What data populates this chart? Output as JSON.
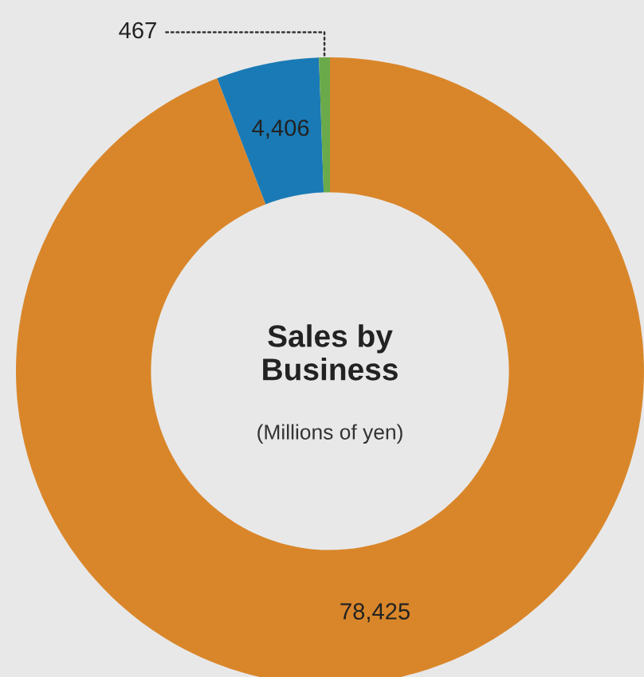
{
  "chart_data": {
    "type": "donut",
    "title": "Sales by Business",
    "subtitle": "(Millions of yen)",
    "categories": [
      null,
      null,
      null
    ],
    "values": [
      78425,
      4406,
      467
    ],
    "colors": [
      "#d9862a",
      "#1a7ab5",
      "#6aaa4a"
    ],
    "value_labels": [
      "78,425",
      "4,406",
      "467"
    ],
    "legend": false
  }
}
